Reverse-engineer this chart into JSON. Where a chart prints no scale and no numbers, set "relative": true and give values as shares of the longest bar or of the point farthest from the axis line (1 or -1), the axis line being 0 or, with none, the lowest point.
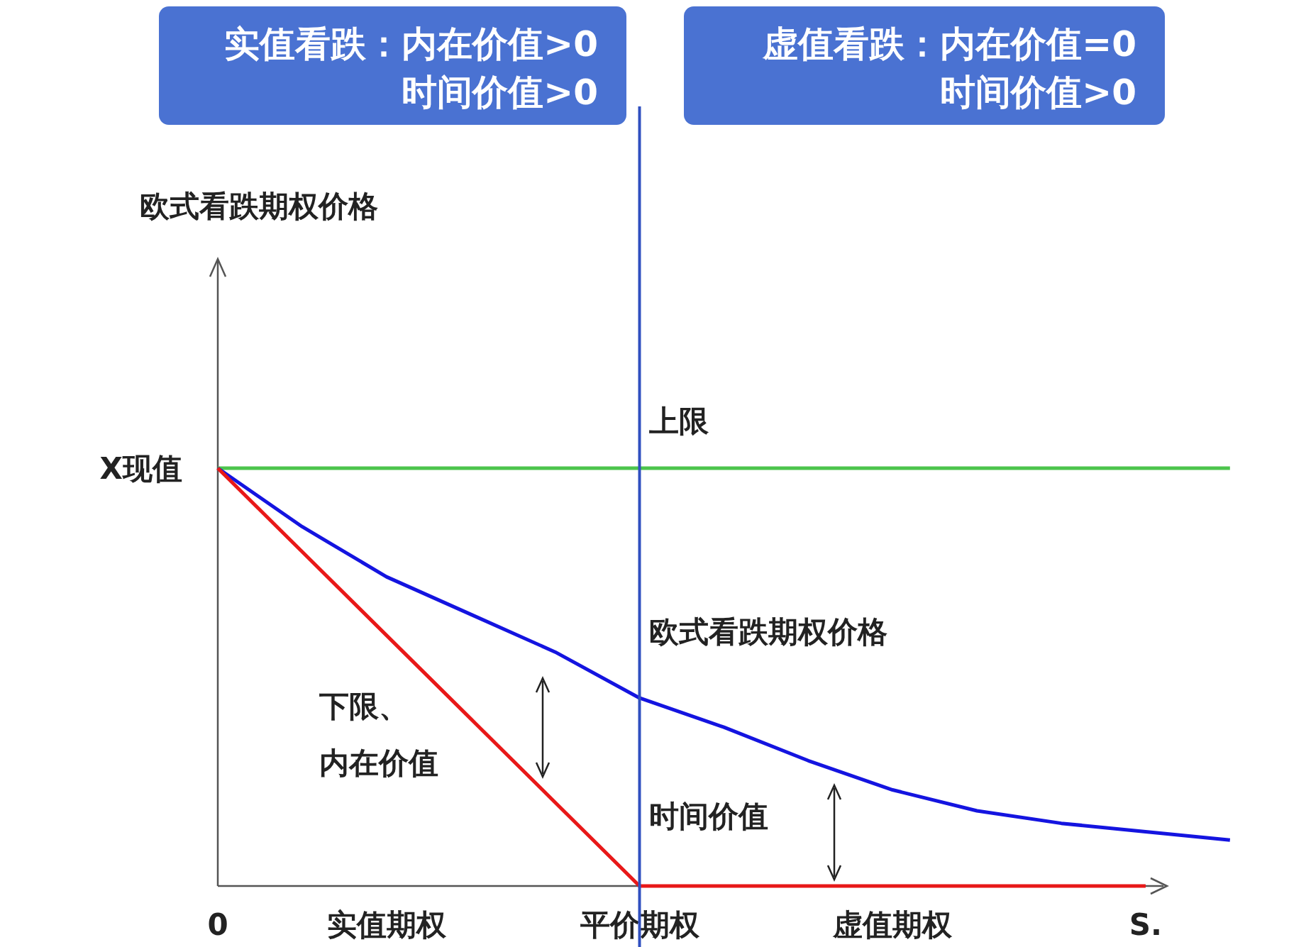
{
  "chart_data": {
    "type": "line",
    "relative": true,
    "categories": [
      "0",
      null,
      "实值期权",
      null,
      null,
      "平价期权",
      null,
      null,
      "虚值期权",
      null,
      null,
      "S.",
      null
    ],
    "series": [
      {
        "name": "上限",
        "color": "#4cc44c",
        "values": [
          1,
          1,
          1,
          1,
          1,
          1,
          1,
          1,
          1,
          1,
          1,
          1,
          1
        ]
      },
      {
        "name": "欧式看跌期权价格",
        "color": "#1414e0",
        "values": [
          1,
          0.86,
          0.74,
          0.65,
          0.56,
          0.45,
          0.38,
          0.3,
          0.23,
          0.18,
          0.15,
          0.13,
          0.11
        ]
      },
      {
        "name": "下限、内在价值",
        "color": "#e81818",
        "values": [
          1,
          0.8,
          0.6,
          0.4,
          0.2,
          0,
          0,
          0,
          0,
          0,
          0,
          0,
          null
        ]
      }
    ],
    "ref_lines": [
      {
        "axis": "x",
        "value": "平价期权",
        "color": "#3050c0"
      }
    ],
    "annotations": [
      "实值看跌：内在价值>0\n时间价值>0",
      "虚值看跌：内在价值=0\n时间价值>0",
      "欧式看跌期权价格",
      "X现值",
      "时间价值"
    ]
  }
}
